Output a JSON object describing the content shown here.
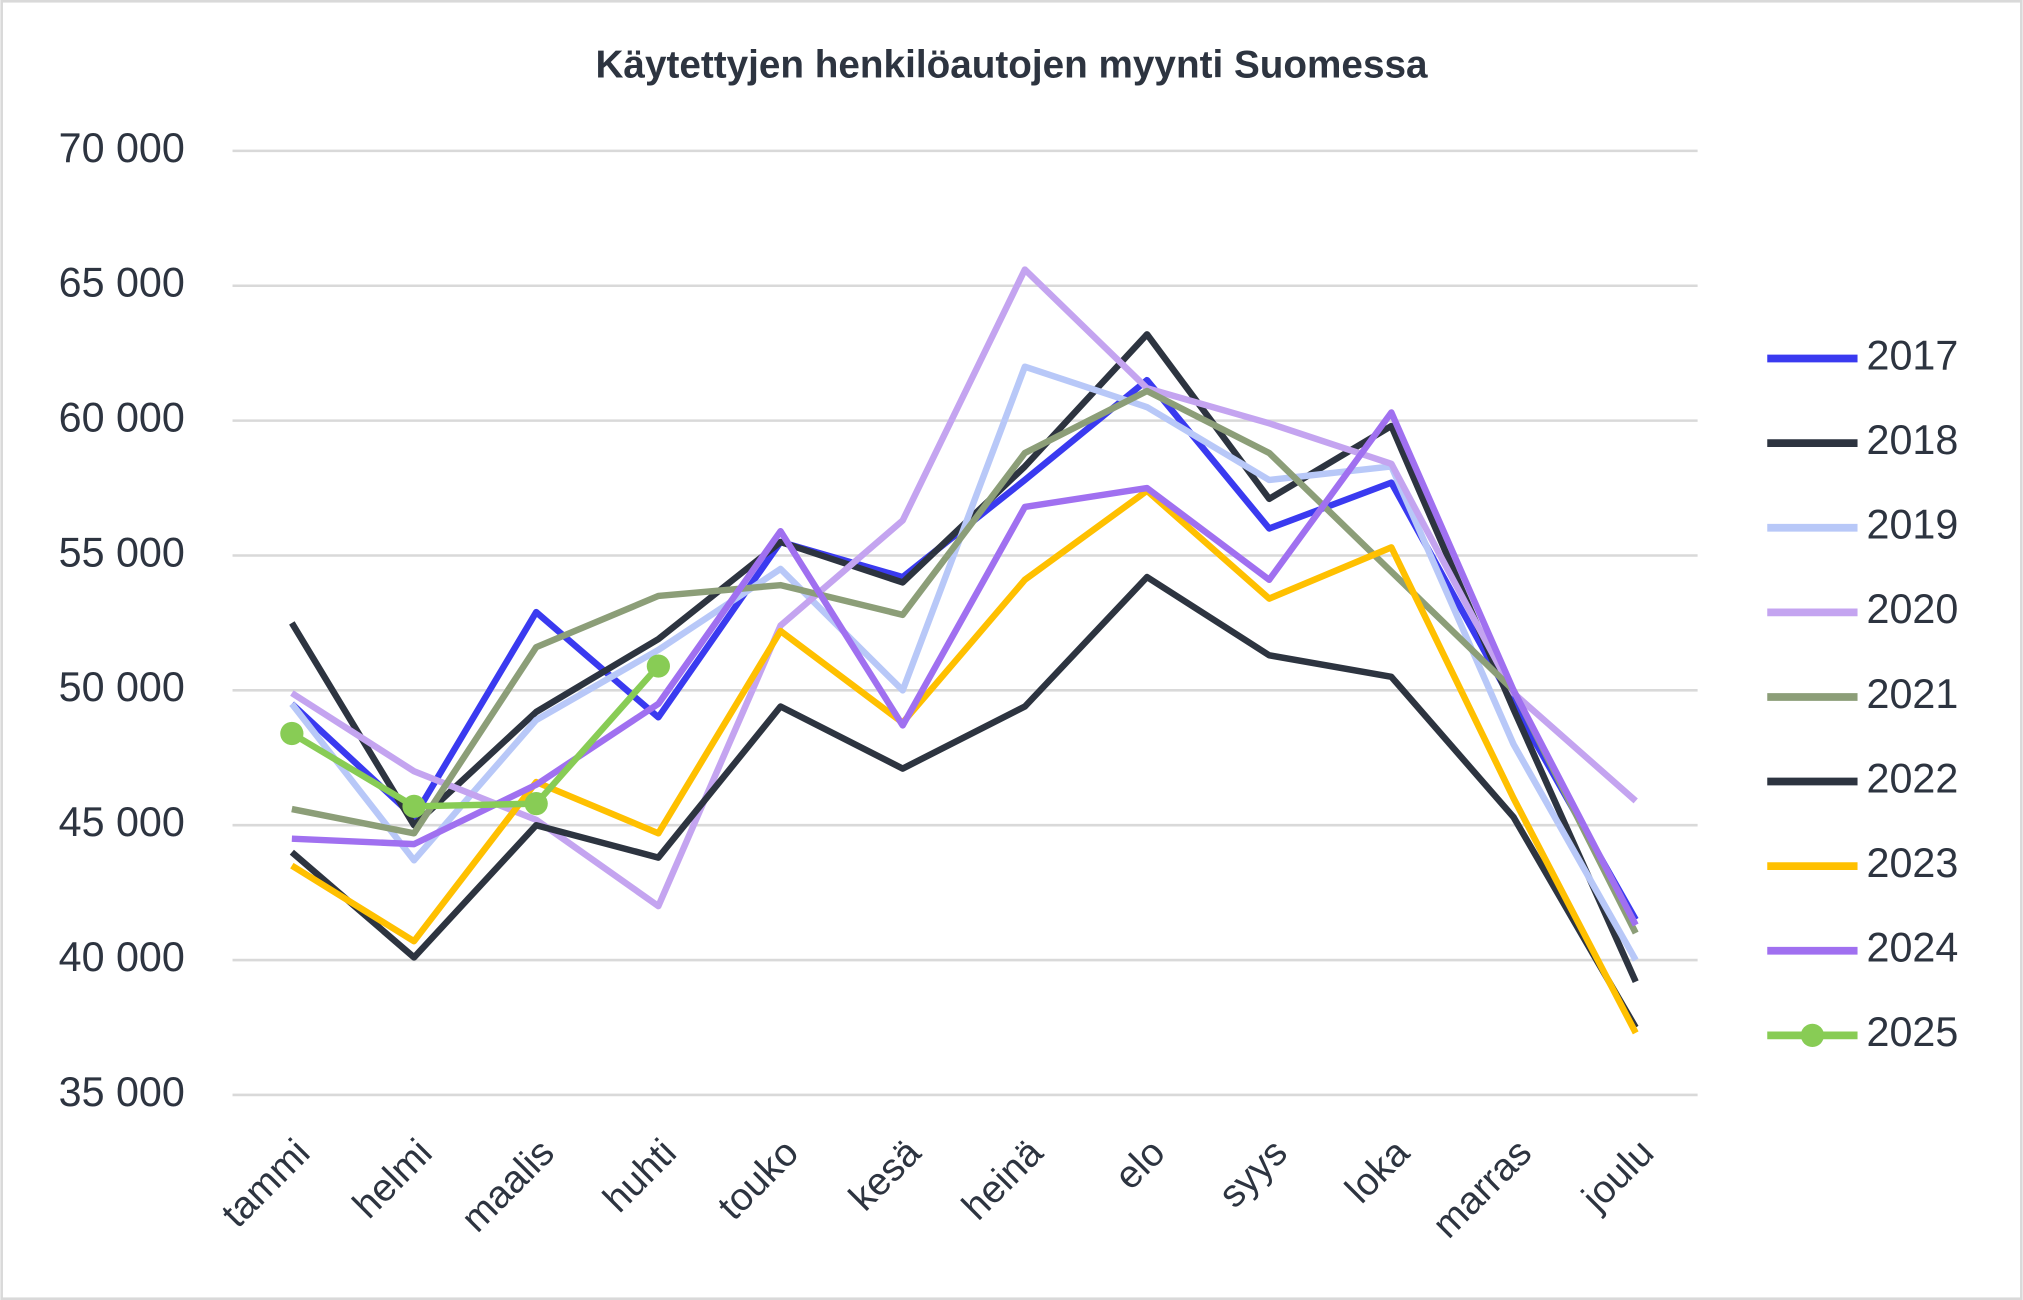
{
  "chart_data": {
    "type": "line",
    "title": "Käytettyjen henkilöautojen  myynti Suomessa",
    "categories": [
      "tammi",
      "helmi",
      "maalis",
      "huhti",
      "touko",
      "kesä",
      "heinä",
      "elo",
      "syys",
      "loka",
      "marras",
      "joulu"
    ],
    "ylim": [
      35000,
      70000
    ],
    "yticks": [
      {
        "value": 35000,
        "label": "35 000"
      },
      {
        "value": 40000,
        "label": "40 000"
      },
      {
        "value": 45000,
        "label": "45 000"
      },
      {
        "value": 50000,
        "label": "50 000"
      },
      {
        "value": 55000,
        "label": "55 000"
      },
      {
        "value": 60000,
        "label": "60 000"
      },
      {
        "value": 65000,
        "label": "65 000"
      },
      {
        "value": 70000,
        "label": "70 000"
      }
    ],
    "grid": true,
    "legend": "right",
    "series": [
      {
        "name": "2017",
        "color": "#3a3af0",
        "values": [
          49500,
          45300,
          52900,
          49000,
          55500,
          54200,
          57800,
          61500,
          56000,
          57700,
          49500,
          41500
        ]
      },
      {
        "name": "2018",
        "color": "#2d3440",
        "values": [
          52500,
          45000,
          49200,
          51900,
          55500,
          54000,
          58300,
          63200,
          57100,
          59800,
          49300,
          39200
        ]
      },
      {
        "name": "2019",
        "color": "#b8c8f8",
        "values": [
          49500,
          43700,
          48900,
          51500,
          54500,
          50000,
          62000,
          60500,
          57800,
          58300,
          48000,
          40000
        ]
      },
      {
        "name": "2020",
        "color": "#c4a4f0",
        "values": [
          49900,
          47000,
          45200,
          42000,
          52400,
          56300,
          65600,
          61200,
          59900,
          58400,
          49900,
          45900
        ]
      },
      {
        "name": "2021",
        "color": "#8c9e78",
        "values": [
          45600,
          44700,
          51600,
          53500,
          53900,
          52800,
          58800,
          61100,
          58800,
          54400,
          50000,
          41000
        ]
      },
      {
        "name": "2022",
        "color": "#2d3440",
        "values": [
          44000,
          40100,
          45000,
          43800,
          49400,
          47100,
          49400,
          54200,
          51300,
          50500,
          45300,
          37500
        ]
      },
      {
        "name": "2023",
        "color": "#ffc000",
        "values": [
          43500,
          40700,
          46600,
          44700,
          52200,
          48800,
          54100,
          57400,
          53400,
          55300,
          46000,
          37300
        ]
      },
      {
        "name": "2024",
        "color": "#a070f0",
        "values": [
          44500,
          44300,
          46500,
          49500,
          55900,
          48700,
          56800,
          57500,
          54100,
          60300,
          50000,
          41300
        ]
      },
      {
        "name": "2025",
        "color": "#88cc55",
        "markers": true,
        "values": [
          48400,
          45700,
          45800,
          50900,
          null,
          null,
          null,
          null,
          null,
          null,
          null,
          null
        ]
      }
    ]
  }
}
